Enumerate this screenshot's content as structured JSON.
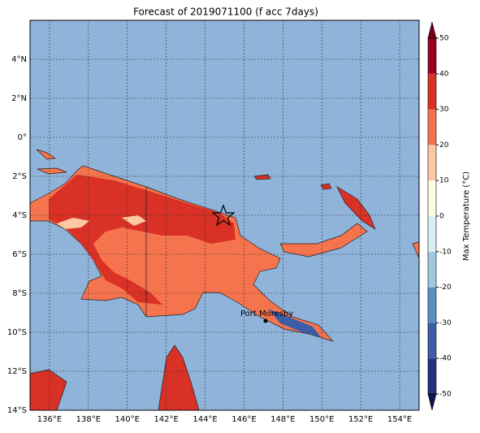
{
  "chart_data": {
    "type": "map",
    "title": "Forecast of 2019071100 (f acc 7days)",
    "xlim": [
      135,
      155
    ],
    "ylim": [
      -14,
      6
    ],
    "xticks": [
      {
        "value": 136,
        "label": "136°E"
      },
      {
        "value": 138,
        "label": "138°E"
      },
      {
        "value": 140,
        "label": "140°E"
      },
      {
        "value": 142,
        "label": "142°E"
      },
      {
        "value": 144,
        "label": "144°E"
      },
      {
        "value": 146,
        "label": "146°E"
      },
      {
        "value": 148,
        "label": "148°E"
      },
      {
        "value": 150,
        "label": "150°E"
      },
      {
        "value": 152,
        "label": "152°E"
      },
      {
        "value": 154,
        "label": "154°E"
      }
    ],
    "yticks": [
      {
        "value": 4,
        "label": "4°N"
      },
      {
        "value": 2,
        "label": "2°N"
      },
      {
        "value": 0,
        "label": "0°"
      },
      {
        "value": -2,
        "label": "2°S"
      },
      {
        "value": -4,
        "label": "4°S"
      },
      {
        "value": -6,
        "label": "6°S"
      },
      {
        "value": -8,
        "label": "8°S"
      },
      {
        "value": -10,
        "label": "10°S"
      },
      {
        "value": -12,
        "label": "12°S"
      },
      {
        "value": -14,
        "label": "14°S"
      }
    ],
    "grid": true,
    "annotation": "Port Moresby",
    "colorbar": {
      "label": "Max Temperature (°C)",
      "ticks": [
        -50,
        -40,
        -30,
        -20,
        -10,
        0,
        10,
        20,
        30,
        40,
        50
      ],
      "colors": [
        "#25307f",
        "#3c5ea8",
        "#5b91c2",
        "#9ecae1",
        "#d9eef5",
        "#fffbe0",
        "#fcc9a4",
        "#f6744d",
        "#d93126",
        "#9a0022"
      ],
      "extend_colors": [
        "#10154f",
        "#7a001c"
      ]
    }
  }
}
